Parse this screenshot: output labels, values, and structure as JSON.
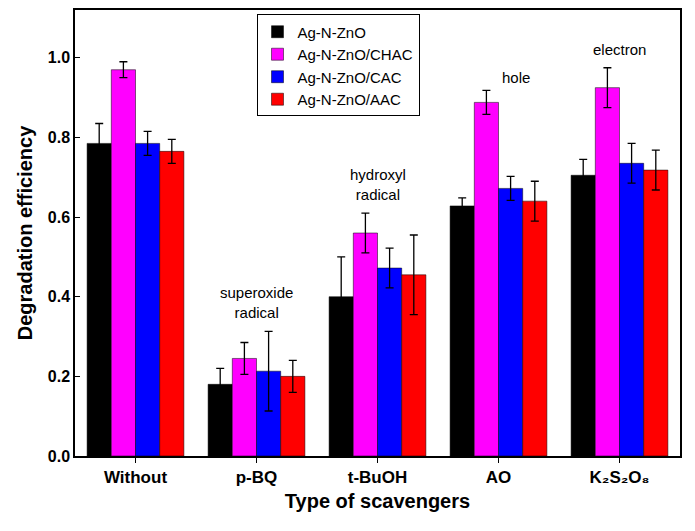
{
  "chart_data": {
    "type": "bar",
    "x_label": "Type of scavengers",
    "y_label": "Degradation efficiency",
    "categories": [
      "Without",
      "p-BQ",
      "t-BuOH",
      "AO",
      "K₂S₂O₈"
    ],
    "series": [
      {
        "name": "Ag-N-ZnO",
        "color": "#000000",
        "values": [
          0.785,
          0.18,
          0.4,
          0.628,
          0.705
        ],
        "errors": [
          0.05,
          0.04,
          0.1,
          0.02,
          0.04
        ]
      },
      {
        "name": "Ag-N-ZnO/CHAC",
        "color": "#ff00ff",
        "values": [
          0.97,
          0.245,
          0.56,
          0.888,
          0.925
        ],
        "errors": [
          0.02,
          0.04,
          0.05,
          0.03,
          0.05
        ]
      },
      {
        "name": "Ag-N-ZnO/CAC",
        "color": "#0000ff",
        "values": [
          0.785,
          0.213,
          0.472,
          0.672,
          0.735
        ],
        "errors": [
          0.03,
          0.1,
          0.05,
          0.03,
          0.05
        ]
      },
      {
        "name": "Ag-N-ZnO/AAC",
        "color": "#ff0000",
        "values": [
          0.765,
          0.2,
          0.455,
          0.64,
          0.718
        ],
        "errors": [
          0.03,
          0.04,
          0.1,
          0.05,
          0.05
        ]
      }
    ],
    "annotations": [
      {
        "category": "p-BQ",
        "lines": [
          "superoxide",
          "radical"
        ]
      },
      {
        "category": "t-BuOH",
        "lines": [
          "hydroxyl",
          "radical"
        ]
      },
      {
        "category": "AO",
        "lines": [
          "hole"
        ]
      },
      {
        "category": "K₂S₂O₈",
        "lines": [
          "electron"
        ]
      }
    ],
    "ylim": [
      0,
      1.12
    ],
    "yticks": [
      {
        "value": 0,
        "label": "0.0"
      },
      {
        "value": 0.2,
        "label": "0.2"
      },
      {
        "value": 0.4,
        "label": "0.4"
      },
      {
        "value": 0.6,
        "label": "0.6"
      },
      {
        "value": 0.8,
        "label": "0.8"
      },
      {
        "value": 1,
        "label": "1.0"
      }
    ],
    "legend": "upper center",
    "grid": false
  }
}
